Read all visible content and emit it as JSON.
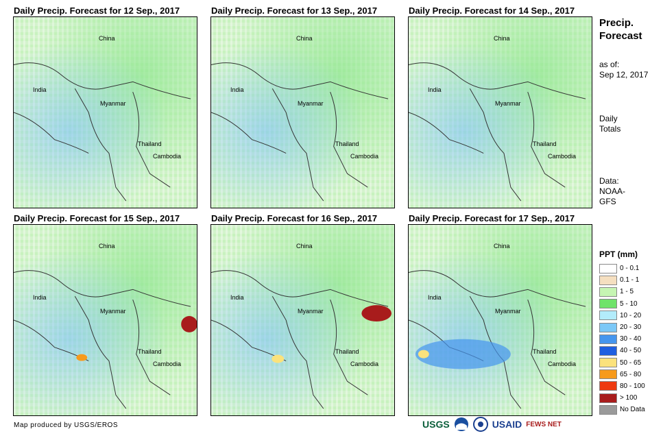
{
  "panels": [
    {
      "title": "Daily Precip. Forecast for 12 Sep., 2017"
    },
    {
      "title": "Daily Precip. Forecast for 13 Sep., 2017"
    },
    {
      "title": "Daily Precip. Forecast for 14 Sep., 2017"
    },
    {
      "title": "Daily Precip. Forecast for 15 Sep., 2017"
    },
    {
      "title": "Daily Precip. Forecast for 16 Sep., 2017"
    },
    {
      "title": "Daily Precip. Forecast for 17 Sep., 2017"
    }
  ],
  "map_labels": {
    "china": "China",
    "india": "India",
    "myanmar": "Myanmar",
    "thailand": "Thailand",
    "cambodia": "Cambodia"
  },
  "sidebar": {
    "title_line1": "Precip.",
    "title_line2": "Forecast",
    "asof_label": "as of:",
    "asof_date": "Sep 12, 2017",
    "totals_line1": "Daily",
    "totals_line2": "Totals",
    "data_label": "Data:",
    "data_source_line1": "NOAA-",
    "data_source_line2": "GFS"
  },
  "legend": {
    "title": "PPT (mm)",
    "items": [
      {
        "label": "0 - 0.1",
        "color": "#ffffff"
      },
      {
        "label": "0.1 - 1",
        "color": "#f5dfc0"
      },
      {
        "label": "1 - 5",
        "color": "#c6f5b3"
      },
      {
        "label": "5 - 10",
        "color": "#6fe36a"
      },
      {
        "label": "10 - 20",
        "color": "#b3ecfb"
      },
      {
        "label": "20 - 30",
        "color": "#7cc8f7"
      },
      {
        "label": "30 - 40",
        "color": "#4696ee"
      },
      {
        "label": "40 - 50",
        "color": "#1f5fe0"
      },
      {
        "label": "50 - 65",
        "color": "#fbe27c"
      },
      {
        "label": "65 - 80",
        "color": "#f79a1b"
      },
      {
        "label": "80 - 100",
        "color": "#ee3a10"
      },
      {
        "label": "> 100",
        "color": "#a81c1c"
      },
      {
        "label": "No Data",
        "color": "#9a9a9a"
      }
    ]
  },
  "credit": "Map produced by USGS/EROS",
  "logos": {
    "usgs": "USGS",
    "usaid": "USAID",
    "fewsnet": "FEWS NET"
  }
}
